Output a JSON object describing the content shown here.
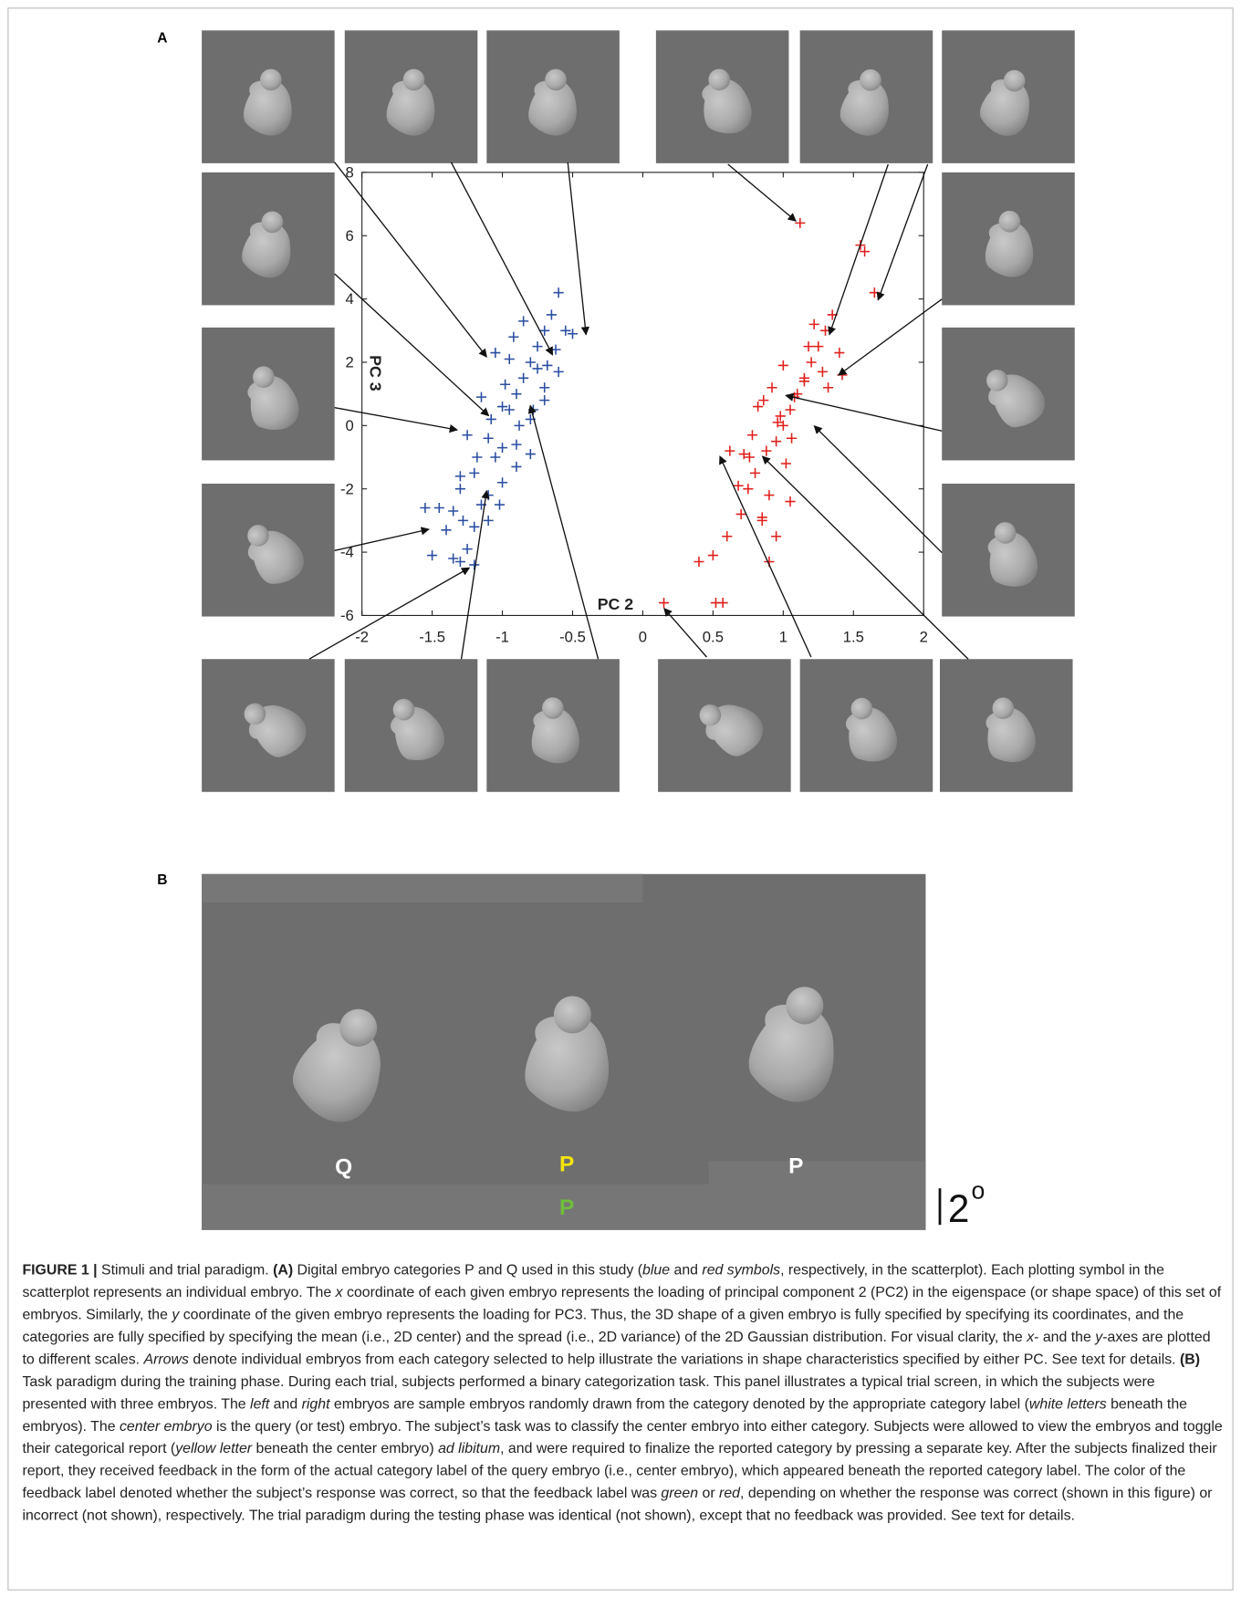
{
  "panel_labels": [
    "A",
    "B"
  ],
  "chart_data": {
    "type": "scatter",
    "marker": "+",
    "xlabel": "PC 2",
    "ylabel": "PC 3",
    "xlim": [
      -2,
      2
    ],
    "ylim": [
      -6,
      8
    ],
    "xticks": [
      -2,
      -1.5,
      -1,
      -0.5,
      0,
      0.5,
      1,
      1.5,
      2
    ],
    "yticks": [
      -6,
      -4,
      -2,
      0,
      2,
      4,
      6,
      8
    ],
    "series": [
      {
        "color": "#2b4ea2",
        "x": [
          -1.35,
          -1.3,
          -1.25,
          -1.2,
          -1.35,
          -1.45,
          -1.5,
          -1.55,
          -1.2,
          -1.15,
          -1.1,
          -1.05,
          -1.0,
          -0.95,
          -0.9,
          -0.85,
          -0.8,
          -0.75,
          -0.7,
          -0.65,
          -0.6,
          -0.55,
          -0.5,
          -0.6,
          -0.62,
          -0.7,
          -0.8,
          -0.9,
          -1.0,
          -1.1,
          -1.2,
          -1.3,
          -1.25,
          -1.15,
          -1.05,
          -0.95,
          -0.85,
          -0.75,
          -1.0,
          -0.9,
          -1.1,
          -0.8,
          -0.7,
          -1.3,
          -1.4,
          -0.98,
          -1.08,
          -0.88,
          -0.78,
          -1.18,
          -1.28,
          -0.68,
          -1.02,
          -0.92
        ],
        "y": [
          -4.2,
          -4.3,
          -3.9,
          -4.4,
          -2.7,
          -2.6,
          -4.1,
          -2.6,
          -3.2,
          -2.5,
          -3.0,
          -1.0,
          -0.7,
          0.5,
          1.0,
          1.5,
          2.0,
          2.5,
          3.0,
          3.5,
          4.2,
          3.0,
          2.9,
          1.7,
          2.4,
          1.2,
          0.2,
          -0.6,
          0.6,
          -0.4,
          -1.5,
          -2.0,
          -0.3,
          0.9,
          2.3,
          2.1,
          3.3,
          1.8,
          -1.8,
          -1.3,
          -2.2,
          -0.9,
          0.8,
          -1.6,
          -3.3,
          1.3,
          0.2,
          0.0,
          0.5,
          -1.0,
          -3.0,
          1.9,
          -2.5,
          2.8
        ]
      },
      {
        "color": "#e0201c",
        "x": [
          0.15,
          0.52,
          0.57,
          0.4,
          0.5,
          0.6,
          0.7,
          0.75,
          0.8,
          0.85,
          0.9,
          0.95,
          1.0,
          1.05,
          1.1,
          1.15,
          1.2,
          1.25,
          1.3,
          1.35,
          1.4,
          1.55,
          1.58,
          1.65,
          1.12,
          0.88,
          0.78,
          0.92,
          0.98,
          1.02,
          1.08,
          0.82,
          0.72,
          0.62,
          1.18,
          1.28,
          0.95,
          1.05,
          0.85,
          0.9,
          0.68,
          1.22,
          1.32,
          1.0,
          0.86,
          0.96,
          1.06,
          0.76,
          1.15,
          1.42
        ],
        "y": [
          -5.6,
          -5.6,
          -5.6,
          -4.3,
          -4.1,
          -3.5,
          -2.8,
          -2.0,
          -1.5,
          -3.0,
          -2.2,
          -0.5,
          0.0,
          0.5,
          1.0,
          1.5,
          2.0,
          2.5,
          3.0,
          3.5,
          2.3,
          5.7,
          5.5,
          4.2,
          6.4,
          -0.8,
          -0.3,
          1.2,
          0.3,
          -1.2,
          0.9,
          0.6,
          -0.9,
          -0.8,
          2.5,
          1.7,
          -3.5,
          -2.4,
          -2.9,
          -4.3,
          -1.9,
          3.2,
          1.2,
          1.9,
          0.8,
          0.1,
          -0.4,
          -1.0,
          1.4,
          1.6
        ]
      }
    ]
  },
  "trial_screen": {
    "labels": [
      {
        "text": "Q",
        "color": "#ffffff"
      },
      {
        "text": "P",
        "color": "#f5e50a"
      },
      {
        "text": "P",
        "color": "#ffffff"
      },
      {
        "text": "P",
        "color": "#6fbf3a"
      }
    ]
  },
  "scale_bar": {
    "text": "2",
    "superscript": "o"
  },
  "caption": {
    "runs": [
      {
        "text": "FIGURE 1 |",
        "style": "bold"
      },
      {
        "text": " Stimuli and trial paradigm. "
      },
      {
        "text": "(A)",
        "style": "bold"
      },
      {
        "text": " Digital embryo categories P and Q used in this study ("
      },
      {
        "text": "blue",
        "style": "italic"
      },
      {
        "text": " and "
      },
      {
        "text": "red symbols",
        "style": "italic"
      },
      {
        "text": ", respectively, in the scatterplot). Each plotting symbol in the scatterplot represents an individual embryo. The "
      },
      {
        "text": "x",
        "style": "italic"
      },
      {
        "text": " coordinate of each given embryo represents the loading of principal component 2 (PC2) in the eigenspace (or shape space) of this set of embryos. Similarly, the "
      },
      {
        "text": "y",
        "style": "italic"
      },
      {
        "text": " coordinate of the given embryo represents the loading for PC3. Thus, the 3D shape of a given embryo is fully specified by specifying its coordinates, and the categories are fully specified by specifying the mean (i.e., 2D center) and the spread (i.e., 2D variance) of the 2D Gaussian distribution. For visual clarity, the "
      },
      {
        "text": "x",
        "style": "italic"
      },
      {
        "text": "- and the "
      },
      {
        "text": "y",
        "style": "italic"
      },
      {
        "text": "-axes are plotted to different scales. "
      },
      {
        "text": "Arrows",
        "style": "italic"
      },
      {
        "text": " denote individual embryos from each category selected to help illustrate the variations in shape characteristics specified by either PC. See text for details. "
      },
      {
        "text": "(B)",
        "style": "bold"
      },
      {
        "text": " Task paradigm during the training phase. During each trial, subjects performed a binary categorization task. This panel illustrates a typical trial screen, in which the subjects were presented with three embryos. The "
      },
      {
        "text": "left",
        "style": "italic"
      },
      {
        "text": " and "
      },
      {
        "text": "right",
        "style": "italic"
      },
      {
        "text": " embryos are sample embryos randomly drawn from the category denoted by the appropriate category label ("
      },
      {
        "text": "white letters",
        "style": "italic"
      },
      {
        "text": " beneath the embryos). The "
      },
      {
        "text": "center embryo",
        "style": "italic"
      },
      {
        "text": " is the query (or test) embryo. The subject’s task was to classify the center embryo into either category. Subjects were allowed to view the embryos and toggle their categorical report ("
      },
      {
        "text": "yellow letter",
        "style": "italic"
      },
      {
        "text": " beneath the center embryo) "
      },
      {
        "text": "ad libitum",
        "style": "italic"
      },
      {
        "text": ", and were required to finalize the reported category by pressing a separate key. After the subjects finalized their report, they received feedback in the form of the actual category label of the query embryo (i.e., center embryo), which appeared beneath the reported category label. The color of the feedback label denoted whether the subject’s response was correct, so that the feedback label was "
      },
      {
        "text": "green",
        "style": "italic"
      },
      {
        "text": " or "
      },
      {
        "text": "red",
        "style": "italic"
      },
      {
        "text": ", depending on whether the response was correct (shown in this figure) or incorrect (not shown), respectively. The trial paradigm during the testing phase was identical (not shown), except that no feedback was provided. See text for details."
      }
    ]
  }
}
